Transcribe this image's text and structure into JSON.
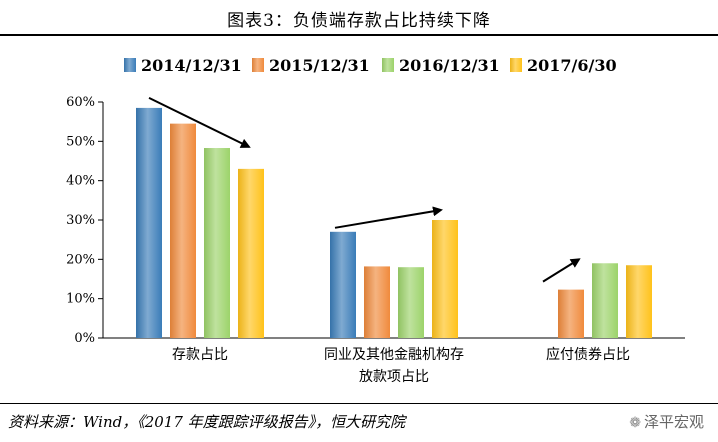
{
  "title": "图表3：负债端存款占比持续下降",
  "source": "资料来源：Wind，《2017 年度跟踪评级报告》，恒大研究院",
  "watermark": "泽平宏观",
  "chart_data": {
    "type": "bar",
    "categories": [
      [
        "存款占比"
      ],
      [
        "同业及其他金融机构存",
        "放款项占比"
      ],
      [
        "应付债券占比"
      ]
    ],
    "series": [
      {
        "name": "2014/12/31",
        "color": "#3a7cb8",
        "values": [
          58.5,
          27,
          null
        ]
      },
      {
        "name": "2015/12/31",
        "color": "#f08a3c",
        "values": [
          54.5,
          18.2,
          12.3
        ]
      },
      {
        "name": "2016/12/31",
        "color": "#9cd36a",
        "values": [
          48.3,
          18,
          19
        ]
      },
      {
        "name": "2017/6/30",
        "color": "#ffc21a",
        "values": [
          43,
          30,
          18.5
        ]
      }
    ],
    "ylim": [
      0,
      60
    ],
    "yticks": [
      0,
      10,
      20,
      30,
      40,
      50,
      60
    ],
    "ytick_labels": [
      "0%",
      "10%",
      "20%",
      "30%",
      "40%",
      "50%",
      "60%"
    ],
    "legend_position": "top",
    "grid": false,
    "annotations": [
      {
        "type": "arrow",
        "direction": "down",
        "group": 0
      },
      {
        "type": "arrow",
        "direction": "up",
        "group": 1
      },
      {
        "type": "arrow",
        "direction": "up",
        "group": 2
      }
    ]
  }
}
